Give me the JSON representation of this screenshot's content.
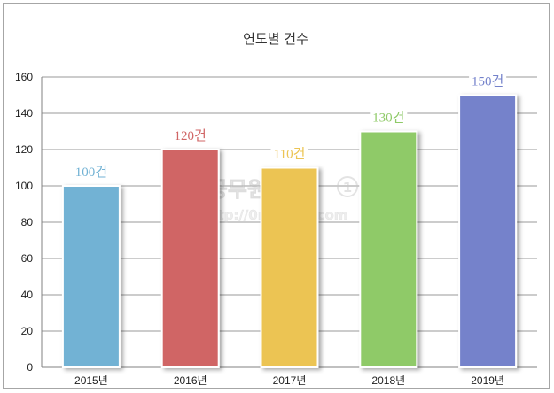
{
  "chart_data": {
    "type": "bar",
    "title": "연도별 건수",
    "categories": [
      "2015년",
      "2016년",
      "2017년",
      "2018년",
      "2019년"
    ],
    "values": [
      100,
      120,
      110,
      130,
      150
    ],
    "data_labels": [
      "100건",
      "120건",
      "110건",
      "130건",
      "150건"
    ],
    "colors": [
      "#72b2d4",
      "#d06565",
      "#ecc453",
      "#8fca68",
      "#7482cb"
    ],
    "ylim": [
      0,
      160
    ],
    "yticks": [
      0,
      20,
      40,
      60,
      80,
      100,
      120,
      140,
      160
    ],
    "grid": true,
    "legend": "none",
    "xlabel": "",
    "ylabel": ""
  },
  "watermark": {
    "name": "공무원닷컴",
    "url": "http://0muwon.com",
    "badge": "1"
  }
}
